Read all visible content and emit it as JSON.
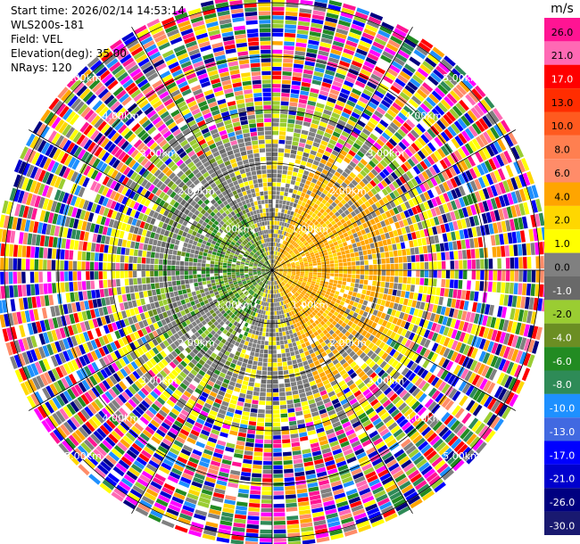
{
  "metadata": {
    "start_time": "Start time: 2026/02/14 14:53:14",
    "instrument": "WLS200s-181",
    "field": "Field: VEL",
    "elevation": "Elevation(deg): 35.00",
    "nrays": "NRays: 120"
  },
  "chart_data": {
    "type": "ppi",
    "title": "",
    "range_ring_labels": [
      "1.00km",
      "2.00km",
      "3.00km",
      "4.00km",
      "5.00km"
    ],
    "range_rings_km": [
      1,
      2,
      3,
      4,
      5
    ],
    "azimuth_spokes_deg": [
      0,
      30,
      60,
      90,
      120,
      150,
      180,
      210,
      240,
      270,
      300,
      330
    ],
    "nrays": 120,
    "max_range_km": 5.0,
    "colorbar": {
      "unit": "m/s",
      "ticks": [
        "26.0",
        "21.0",
        "17.0",
        "13.0",
        "10.0",
        "8.0",
        "6.0",
        "4.0",
        "2.0",
        "1.0",
        "0.0",
        "-1.0",
        "-2.0",
        "-4.0",
        "-6.0",
        "-8.0",
        "-10.0",
        "-13.0",
        "-17.0",
        "-21.0",
        "-26.0",
        "-30.0"
      ],
      "colors": [
        "#ff1493",
        "#ff69b4",
        "#ff0000",
        "#ff2d00",
        "#ff5a1f",
        "#ff7f50",
        "#ff8c69",
        "#ffa500",
        "#ffd700",
        "#ffff00",
        "#808080",
        "#696969",
        "#9acd32",
        "#6b8e23",
        "#228b22",
        "#2e8b57",
        "#1e90ff",
        "#4169e1",
        "#0000ff",
        "#0000cd",
        "#000080",
        "#191970"
      ]
    },
    "velocity_pattern": {
      "inner_region_km": 2.5,
      "positive_sector_azimuth_deg": [
        20,
        160
      ],
      "positive_velocity_ms": [
        1.0,
        4.0
      ],
      "negative_sector_azimuth_deg": [
        200,
        340
      ],
      "negative_velocity_ms": [
        -8.0,
        -1.0
      ],
      "transition_velocity_ms": [
        -2.0,
        2.0
      ],
      "outer_region": "noise"
    }
  }
}
